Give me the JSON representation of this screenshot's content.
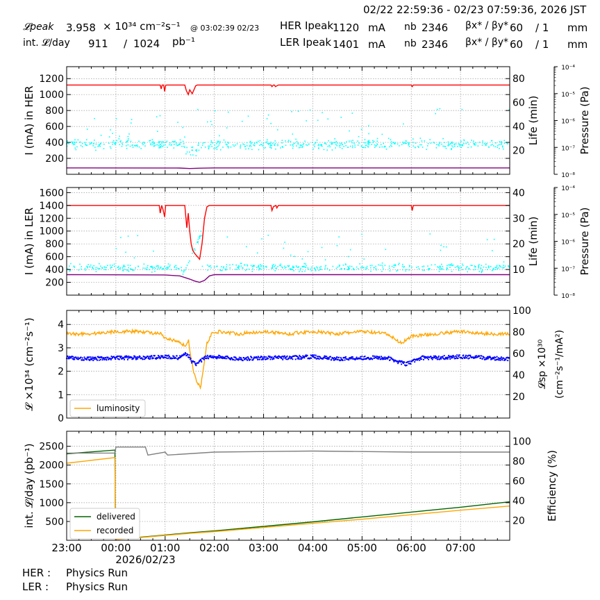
{
  "header": {
    "date_range": "02/22 22:59:36 - 02/23 07:59:36, 2026 JST",
    "lpeak_label": "𝓛peak",
    "lpeak_value": "3.958",
    "lpeak_unit": "× 10³⁴ cm⁻²s⁻¹",
    "lpeak_time": "@ 03:02:39 02/23",
    "intl_label": "int. 𝓛/day",
    "intl_value": "911",
    "intl_sep": "/",
    "intl_total": "1024",
    "intl_unit": "pb⁻¹",
    "her_label": "HER Ipeak",
    "her_value": "1120",
    "ler_label": "LER Ipeak",
    "ler_value": "1401",
    "current_unit": "mA",
    "nb_label": "nb",
    "her_nb": "2346",
    "ler_nb": "2346",
    "beta_label": "βx* / βy*",
    "her_beta_x": "60",
    "her_beta_y": "/ 1",
    "ler_beta_x": "60",
    "ler_beta_y": "/ 1",
    "beta_unit": "mm"
  },
  "footer": {
    "her_label": "HER :",
    "her_status": "Physics Run",
    "ler_label": "LER :",
    "ler_status": "Physics Run"
  },
  "colors": {
    "current": "#ff0000",
    "lifetime": "#00ffff",
    "pressure": "#800080",
    "luminosity": "#ffa500",
    "specific_lumi": "#0000ff",
    "delivered": "#006400",
    "recorded": "#ffa500",
    "efficiency": "#808080"
  },
  "chart_data": [
    {
      "type": "line",
      "id": "her",
      "ylabel": "I (mA) in HER",
      "ylim": [
        0,
        1350
      ],
      "yticks": [
        200,
        400,
        600,
        800,
        1000,
        1200
      ],
      "y2label": "Life (min)",
      "y2lim": [
        0,
        90
      ],
      "y2ticks": [
        20,
        40,
        60,
        80
      ],
      "y3label": "Pressure (Pa)",
      "y3scale": "log",
      "y3lim": [
        "10⁻⁸",
        "10⁻⁴"
      ],
      "y3ticks": [
        "10⁻⁸",
        "10⁻⁷",
        "10⁻⁶",
        "10⁻⁵",
        "10⁻⁴"
      ],
      "xlim": [
        -1,
        8
      ],
      "grid": true,
      "series": [
        {
          "role": "current",
          "x": [
            -1,
            0.9,
            0.92,
            0.94,
            0.97,
            0.99,
            1.01,
            1.03,
            1.05,
            1.4,
            1.43,
            1.47,
            1.5,
            1.55,
            1.6,
            1.62,
            1.65,
            1.68,
            1.7,
            3.15,
            3.17,
            3.2,
            3.22,
            3.24,
            3.3,
            3.32,
            3.35,
            6.0,
            6.02,
            6.04,
            8
          ],
          "y": [
            1120,
            1120,
            1070,
            1120,
            1120,
            1040,
            1115,
            1120,
            1120,
            1120,
            1050,
            1000,
            1060,
            1010,
            1080,
            1110,
            1120,
            1120,
            1120,
            1120,
            1100,
            1120,
            1120,
            1100,
            1120,
            1120,
            1120,
            1120,
            1100,
            1120,
            1120
          ]
        },
        {
          "role": "pressure",
          "x": [
            -1,
            1.0,
            1.3,
            1.5,
            1.7,
            2.0,
            8
          ],
          "y": [
            80,
            79,
            78,
            72,
            77,
            80,
            80
          ]
        }
      ],
      "lifetime_points": {
        "axis": "y2",
        "mean": 25,
        "spread": 4,
        "count": 620,
        "outlier_range": [
          30,
          55
        ],
        "dip": {
          "x_range": [
            1.4,
            1.65
          ],
          "min": 15
        }
      }
    },
    {
      "type": "line",
      "id": "ler",
      "ylabel": "I (mA) in LER",
      "ylim": [
        0,
        1680
      ],
      "yticks": [
        200,
        400,
        600,
        800,
        1000,
        1200,
        1400,
        1600
      ],
      "y2label": "Life (min)",
      "y2lim": [
        0,
        42
      ],
      "y2ticks": [
        10,
        20,
        30,
        40
      ],
      "y3label": "Pressure (Pa)",
      "y3scale": "log",
      "y3lim": [
        "10⁻⁸",
        "10⁻⁴"
      ],
      "y3ticks": [
        "10⁻⁸",
        "10⁻⁷",
        "10⁻⁶",
        "10⁻⁵",
        "10⁻⁴"
      ],
      "xlim": [
        -1,
        8
      ],
      "grid": true,
      "series": [
        {
          "role": "current",
          "x": [
            -1,
            0.88,
            0.9,
            0.93,
            0.96,
            0.99,
            1.01,
            1.4,
            1.44,
            1.47,
            1.5,
            1.53,
            1.56,
            1.6,
            1.7,
            1.75,
            1.8,
            1.85,
            1.9,
            1.95,
            2.0,
            2.05,
            2.1,
            3.15,
            3.17,
            3.2,
            3.25,
            3.27,
            3.3,
            6.0,
            6.02,
            6.04,
            8
          ],
          "y": [
            1400,
            1400,
            1280,
            1400,
            1330,
            1220,
            1400,
            1400,
            1050,
            1280,
            1000,
            800,
            700,
            650,
            560,
            800,
            1200,
            1380,
            1400,
            1400,
            1400,
            1400,
            1400,
            1400,
            1320,
            1380,
            1400,
            1360,
            1400,
            1400,
            1320,
            1400,
            1400
          ]
        },
        {
          "role": "pressure",
          "x": [
            -1,
            1.0,
            1.3,
            1.5,
            1.6,
            1.7,
            1.8,
            1.9,
            2.0,
            8
          ],
          "y": [
            320,
            315,
            300,
            250,
            220,
            200,
            230,
            300,
            320,
            320
          ]
        }
      ],
      "lifetime_points": {
        "axis": "y2",
        "mean": 10.8,
        "spread": 1.5,
        "count": 520,
        "outlier_range": [
          12,
          24
        ],
        "dip": {
          "x_range": [
            1.35,
            1.75
          ],
          "rise_to": 23
        }
      }
    },
    {
      "type": "line",
      "id": "lumi",
      "ylabel": "𝓛 ×10³⁴ (cm⁻²s⁻¹)",
      "ylim": [
        0,
        4.6
      ],
      "yticks": [
        0,
        1,
        2,
        3,
        4
      ],
      "y2label": "𝓛sp ×10³⁰ (cm⁻²s⁻¹/mA²)",
      "y2lim": [
        0,
        100
      ],
      "y2ticks": [
        20,
        40,
        60,
        80,
        100
      ],
      "xlim": [
        -1,
        8
      ],
      "grid": true,
      "legend": {
        "position": "bottom-left",
        "entries": [
          "luminosity"
        ]
      },
      "series": [
        {
          "name": "luminosity",
          "role": "luminosity",
          "axis": "y",
          "x": [
            -1,
            -0.5,
            0,
            0.5,
            0.9,
            1.0,
            1.2,
            1.4,
            1.48,
            1.52,
            1.58,
            1.65,
            1.72,
            1.78,
            1.85,
            1.95,
            2.1,
            2.5,
            3.0,
            3.5,
            4.0,
            4.5,
            5.0,
            5.5,
            5.8,
            6.0,
            6.5,
            7.0,
            7.5,
            8
          ],
          "y": [
            3.6,
            3.6,
            3.7,
            3.7,
            3.6,
            3.4,
            3.3,
            3.1,
            3.3,
            2.6,
            2.0,
            1.5,
            1.3,
            2.2,
            3.2,
            3.6,
            3.7,
            3.6,
            3.7,
            3.6,
            3.7,
            3.6,
            3.7,
            3.6,
            3.2,
            3.5,
            3.6,
            3.7,
            3.6,
            3.6
          ]
        },
        {
          "role": "specific_lumi",
          "axis": "y2",
          "x": [
            -1,
            -0.5,
            0,
            0.5,
            1.0,
            1.3,
            1.45,
            1.55,
            1.65,
            1.75,
            1.85,
            2.0,
            2.5,
            3.0,
            3.5,
            4.0,
            4.5,
            5.0,
            5.5,
            5.9,
            6.2,
            6.5,
            7.0,
            7.5,
            8
          ],
          "y": [
            56,
            55,
            56,
            56,
            57,
            56,
            60,
            52,
            50,
            54,
            57,
            57,
            55,
            56,
            56,
            57,
            55,
            56,
            56,
            50,
            56,
            56,
            57,
            56,
            55
          ]
        }
      ]
    },
    {
      "type": "line",
      "id": "intlumi",
      "ylabel": "int. 𝓛/day (pb⁻¹)",
      "ylim": [
        0,
        2900
      ],
      "yticks": [
        500,
        1000,
        1500,
        2000,
        2500
      ],
      "y2label": "Efficiency (%)",
      "y2lim": [
        0,
        110
      ],
      "y2ticks": [
        20,
        40,
        60,
        80,
        100
      ],
      "xlim": [
        -1,
        8
      ],
      "xticks": [
        "23:00",
        "00:00",
        "01:00",
        "02:00",
        "03:00",
        "04:00",
        "05:00",
        "06:00",
        "07:00"
      ],
      "xdate": "2026/02/23",
      "grid": true,
      "legend": {
        "position": "bottom-left",
        "entries": [
          "delivered",
          "recorded"
        ]
      },
      "series": [
        {
          "name": "delivered",
          "role": "delivered",
          "axis": "y",
          "x": [
            -1,
            -0.02,
            -0.01,
            0.3,
            1.0,
            1.5,
            2.0,
            3.0,
            4.0,
            5.0,
            6.0,
            7.0,
            8
          ],
          "y": [
            2300,
            2400,
            30,
            60,
            140,
            200,
            250,
            370,
            490,
            620,
            750,
            880,
            1024
          ]
        },
        {
          "name": "recorded",
          "role": "recorded",
          "axis": "y",
          "x": [
            -1,
            -0.02,
            -0.01,
            0.3,
            1.0,
            1.5,
            2.0,
            3.0,
            4.0,
            5.0,
            6.0,
            7.0,
            8
          ],
          "y": [
            2050,
            2200,
            20,
            50,
            130,
            185,
            230,
            340,
            450,
            560,
            680,
            800,
            911
          ]
        },
        {
          "role": "efficiency",
          "axis": "y2",
          "x": [
            -1,
            -0.02,
            0.0,
            0.6,
            0.65,
            1.0,
            1.05,
            2.0,
            4.0,
            6.0,
            8
          ],
          "y": [
            88,
            88,
            94,
            94,
            86,
            89,
            86,
            89,
            90,
            89,
            89
          ]
        }
      ]
    }
  ]
}
